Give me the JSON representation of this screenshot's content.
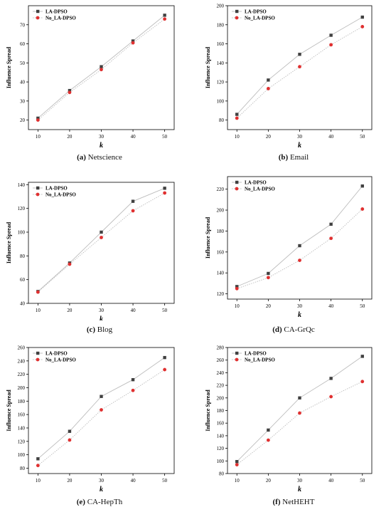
{
  "figure": {
    "captions": [
      {
        "letter": "(a)",
        "name": "Netscience"
      },
      {
        "letter": "(b)",
        "name": "Email"
      },
      {
        "letter": "(c)",
        "name": "Blog"
      },
      {
        "letter": "(d)",
        "name": "CA-GrQc"
      },
      {
        "letter": "(e)",
        "name": "CA-HepTh"
      },
      {
        "letter": "(f)",
        "name": "NetHEHT"
      }
    ]
  },
  "colors": {
    "la_dpso": "#404040",
    "no_la_dpso": "#e03030",
    "line": "#bdbdbd"
  },
  "chart_data": [
    {
      "type": "line",
      "title": "",
      "xlabel": "k",
      "ylabel": "Influence Spread",
      "x": [
        10,
        20,
        30,
        40,
        50
      ],
      "xlim": [
        7,
        53
      ],
      "ylim": [
        15,
        80
      ],
      "xticks": [
        "10",
        "20",
        "30",
        "40",
        "50"
      ],
      "yticks": [
        "20",
        "30",
        "40",
        "50",
        "60",
        "70"
      ],
      "legend": "top-left",
      "series": [
        {
          "name": "LA-DPSO",
          "values": [
            21,
            35.5,
            48,
            61.5,
            75
          ]
        },
        {
          "name": "No_LA-DPSO",
          "values": [
            20,
            34.5,
            46.5,
            60.5,
            73
          ]
        }
      ]
    },
    {
      "type": "line",
      "title": "",
      "xlabel": "k",
      "ylabel": "Influence Spread",
      "x": [
        10,
        20,
        30,
        40,
        50
      ],
      "xlim": [
        7,
        53
      ],
      "ylim": [
        70,
        200
      ],
      "xticks": [
        "10",
        "20",
        "30",
        "40",
        "50"
      ],
      "yticks": [
        "80",
        "100",
        "120",
        "140",
        "160",
        "180",
        "200"
      ],
      "legend": "top-left",
      "series": [
        {
          "name": "LA-DPSO",
          "values": [
            86,
            122,
            149,
            169,
            188
          ]
        },
        {
          "name": "No_LA-DPSO",
          "values": [
            82,
            113,
            136,
            159,
            178
          ]
        }
      ]
    },
    {
      "type": "line",
      "title": "",
      "xlabel": "k",
      "ylabel": "Influence Spread",
      "x": [
        10,
        20,
        30,
        40,
        50
      ],
      "xlim": [
        7,
        53
      ],
      "ylim": [
        40,
        142
      ],
      "xticks": [
        "10",
        "20",
        "30",
        "40",
        "50"
      ],
      "yticks": [
        "40",
        "60",
        "80",
        "100",
        "120",
        "140"
      ],
      "legend": "top-left",
      "series": [
        {
          "name": "LA-DPSO",
          "values": [
            50,
            74,
            100,
            126,
            137
          ]
        },
        {
          "name": "No_LA-DPSO",
          "values": [
            49.5,
            73,
            95.5,
            118,
            133
          ]
        }
      ]
    },
    {
      "type": "line",
      "title": "",
      "xlabel": "k",
      "ylabel": "Influence Spread",
      "x": [
        10,
        20,
        30,
        40,
        50
      ],
      "xlim": [
        7,
        53
      ],
      "ylim": [
        115,
        232
      ],
      "xticks": [
        "10",
        "20",
        "30",
        "40",
        "50"
      ],
      "yticks": [
        "120",
        "140",
        "160",
        "180",
        "200",
        "220"
      ],
      "legend": "top-left",
      "series": [
        {
          "name": "LA-DPSO",
          "values": [
            127,
            139.5,
            166,
            186.5,
            223
          ]
        },
        {
          "name": "No_LA-DPSO",
          "values": [
            125,
            135.5,
            152,
            173,
            201
          ]
        }
      ]
    },
    {
      "type": "line",
      "title": "",
      "xlabel": "k",
      "ylabel": "Influence Spread",
      "x": [
        10,
        20,
        30,
        40,
        50
      ],
      "xlim": [
        7,
        53
      ],
      "ylim": [
        72,
        260
      ],
      "xticks": [
        "10",
        "20",
        "30",
        "40",
        "50"
      ],
      "yticks": [
        "80",
        "100",
        "120",
        "140",
        "160",
        "180",
        "200",
        "220",
        "240",
        "260"
      ],
      "legend": "top-left",
      "series": [
        {
          "name": "LA-DPSO",
          "values": [
            94,
            135,
            187,
            212,
            245
          ]
        },
        {
          "name": "No_LA-DPSO",
          "values": [
            84,
            122,
            167,
            196,
            227
          ]
        }
      ]
    },
    {
      "type": "line",
      "title": "",
      "xlabel": "k",
      "ylabel": "Influence Spread",
      "x": [
        10,
        20,
        30,
        40,
        50
      ],
      "xlim": [
        7,
        53
      ],
      "ylim": [
        80,
        280
      ],
      "xticks": [
        "10",
        "20",
        "30",
        "40",
        "50"
      ],
      "yticks": [
        "80",
        "100",
        "120",
        "140",
        "160",
        "180",
        "200",
        "220",
        "240",
        "260",
        "280"
      ],
      "legend": "top-left",
      "series": [
        {
          "name": "LA-DPSO",
          "values": [
            99,
            149,
            200,
            231,
            266
          ]
        },
        {
          "name": "No_LA-DPSO",
          "values": [
            94,
            133,
            176,
            202,
            226
          ]
        }
      ]
    }
  ]
}
